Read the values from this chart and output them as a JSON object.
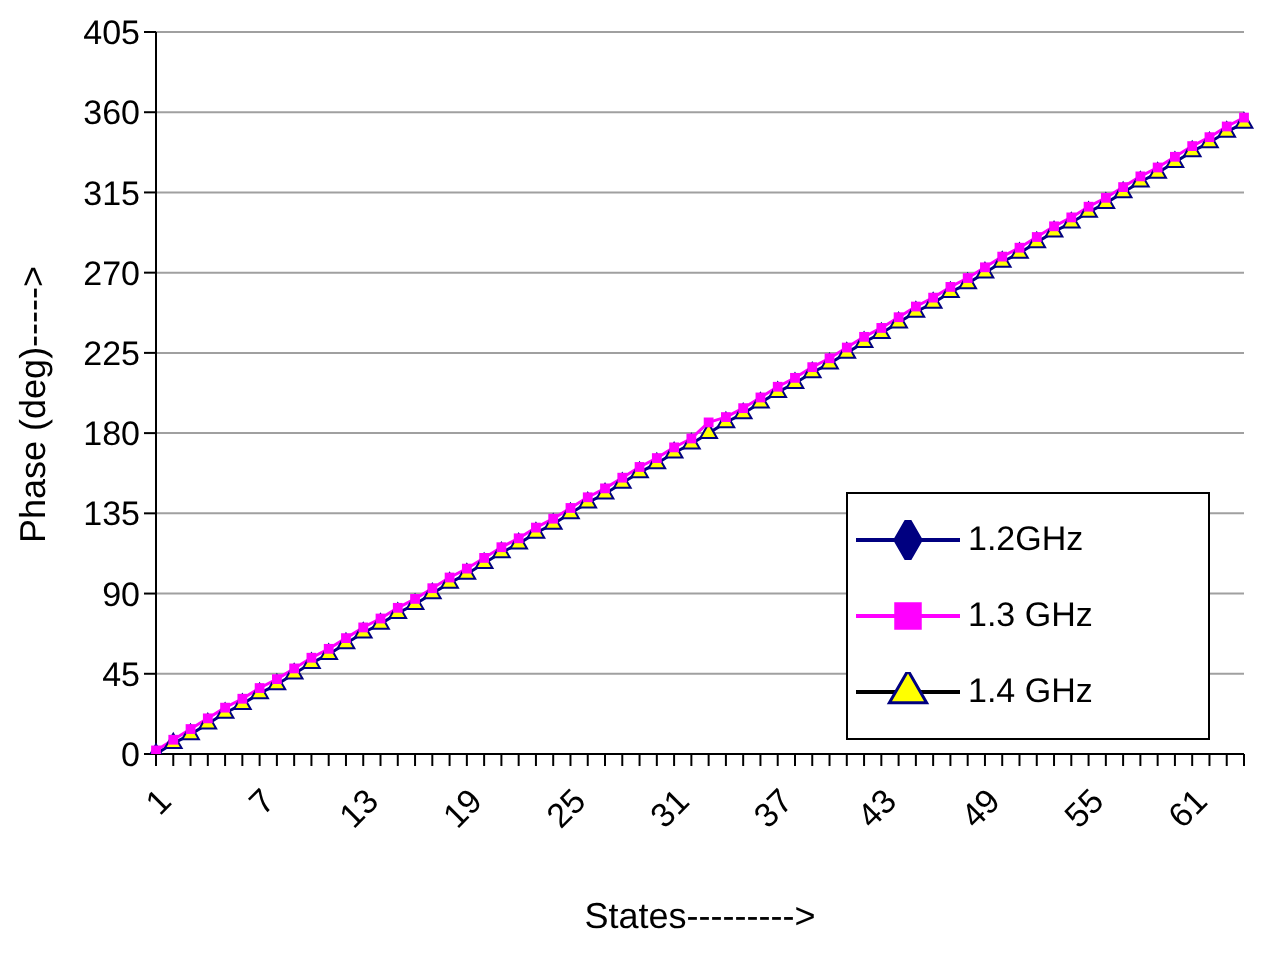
{
  "chart_data": {
    "type": "line",
    "xlabel": "States--------->",
    "ylabel": "Phase (deg)----->",
    "categories": [
      "1",
      null,
      null,
      null,
      null,
      null,
      "7",
      null,
      null,
      null,
      null,
      null,
      "13",
      null,
      null,
      null,
      null,
      null,
      "19",
      null,
      null,
      null,
      null,
      null,
      "25",
      null,
      null,
      null,
      null,
      null,
      "31",
      null,
      null,
      null,
      null,
      null,
      "37",
      null,
      null,
      null,
      null,
      null,
      "43",
      null,
      null,
      null,
      null,
      null,
      "49",
      null,
      null,
      null,
      null,
      null,
      "55",
      null,
      null,
      null,
      null,
      null,
      "61",
      null,
      null,
      null
    ],
    "series": [
      {
        "name": "1.2GHz",
        "color": "#000080",
        "marker": "diamond",
        "values": [
          null,
          null,
          null,
          null,
          null,
          null,
          null,
          null,
          null,
          null,
          null,
          null,
          null,
          null,
          null,
          null,
          null,
          null,
          null,
          null,
          null,
          null,
          null,
          null,
          null,
          null,
          null,
          null,
          null,
          null,
          null,
          null,
          null,
          null,
          null,
          null,
          null,
          null,
          null,
          null,
          null,
          null,
          null,
          null,
          null,
          null,
          null,
          null,
          null,
          null,
          null,
          null,
          null,
          null,
          null,
          null,
          null,
          null,
          null,
          null,
          null,
          null,
          null,
          null
        ]
      },
      {
        "name": "1.3 GHz",
        "color": "#ff00ff",
        "marker": "square",
        "values": [
          2,
          8,
          14,
          20,
          26,
          31,
          37,
          42,
          48,
          54,
          59,
          65,
          71,
          76,
          82,
          87,
          93,
          99,
          104,
          110,
          116,
          121,
          127,
          132,
          138,
          144,
          149,
          155,
          161,
          166,
          172,
          177,
          186,
          189,
          194,
          200,
          206,
          211,
          217,
          222,
          228,
          234,
          239,
          245,
          251,
          256,
          262,
          267,
          273,
          279,
          284,
          290,
          296,
          301,
          307,
          312,
          318,
          324,
          329,
          335,
          341,
          346,
          352,
          357
        ]
      },
      {
        "name": "1.4 GHz",
        "color": "#ffff00",
        "marker": "triangle",
        "values": [
          0,
          6,
          11,
          17,
          23,
          28,
          34,
          39,
          45,
          51,
          56,
          62,
          68,
          73,
          79,
          84,
          90,
          96,
          101,
          107,
          113,
          118,
          124,
          129,
          135,
          141,
          146,
          152,
          158,
          163,
          169,
          174,
          180,
          186,
          191,
          197,
          203,
          208,
          214,
          219,
          225,
          231,
          236,
          242,
          248,
          253,
          259,
          264,
          270,
          276,
          281,
          287,
          293,
          298,
          304,
          309,
          315,
          321,
          326,
          332,
          338,
          343,
          349,
          354
        ]
      }
    ],
    "ylim": [
      0,
      405
    ],
    "yticks": [
      0,
      45,
      90,
      135,
      180,
      225,
      270,
      315,
      360,
      405
    ],
    "grid": "y",
    "legend": "right",
    "line_style": "solid"
  }
}
